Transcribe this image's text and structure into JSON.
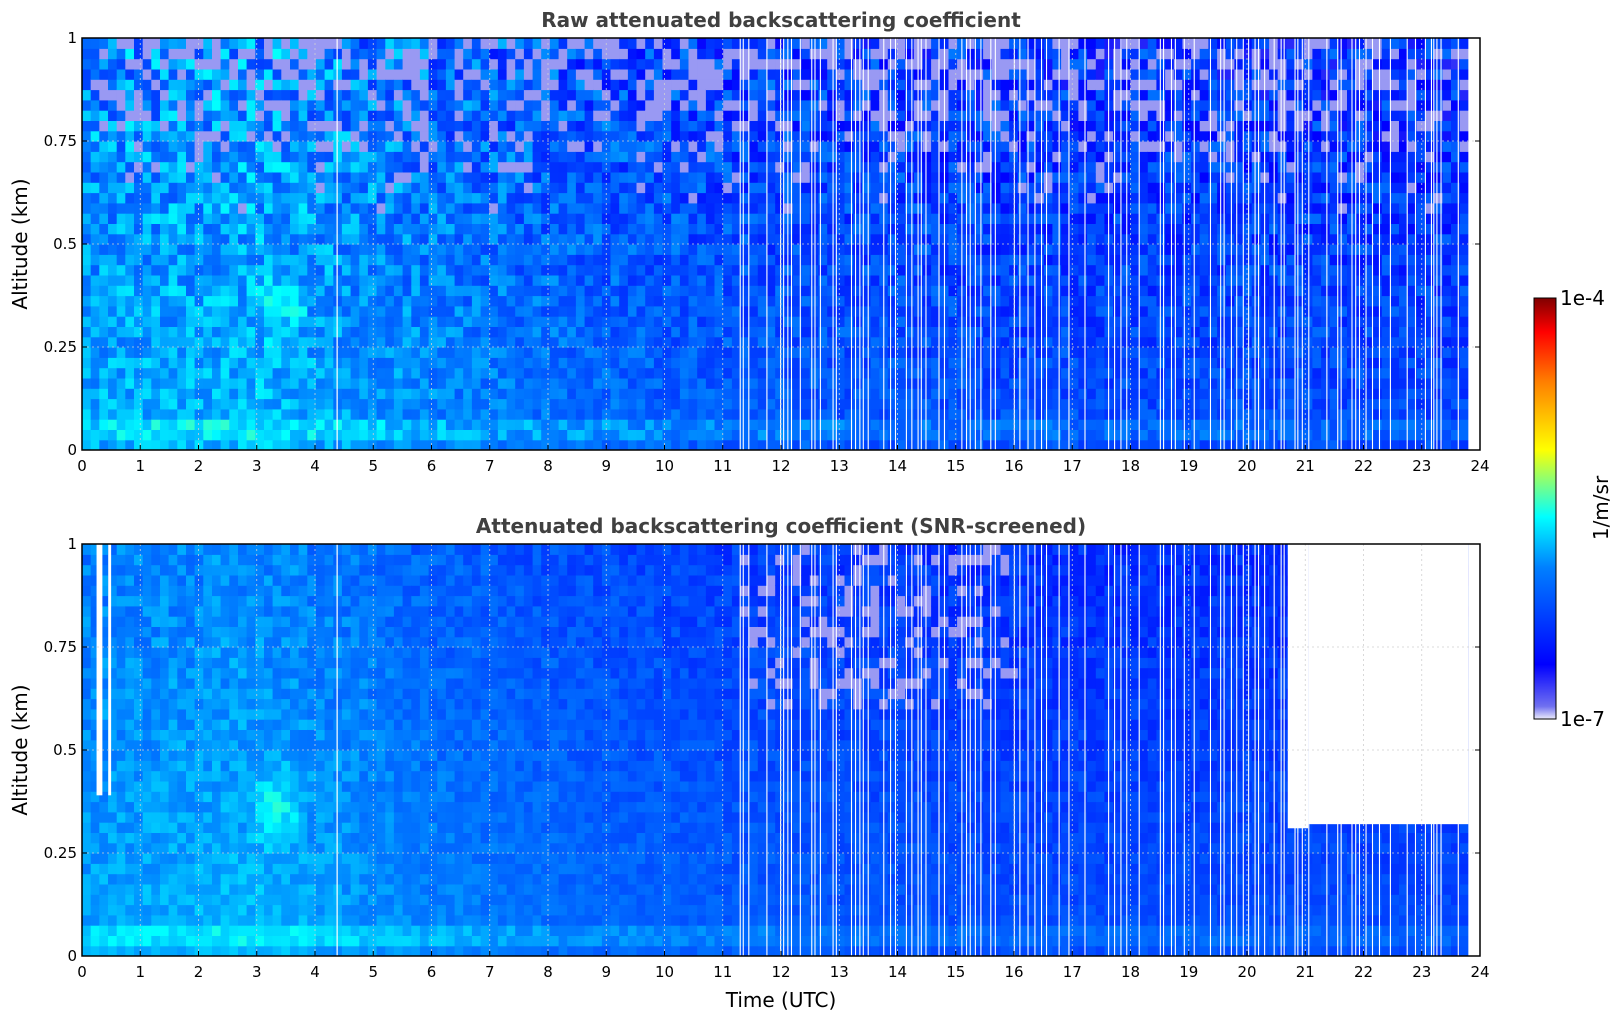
{
  "chart_data": [
    {
      "type": "heatmap",
      "title": "Raw attenuated backscattering coefficient",
      "xlabel": "",
      "ylabel": "Altitude (km)",
      "xlim": [
        0,
        24
      ],
      "ylim": [
        0,
        1
      ],
      "x_ticks": [
        "0",
        "1",
        "2",
        "3",
        "4",
        "5",
        "6",
        "7",
        "8",
        "9",
        "10",
        "11",
        "12",
        "13",
        "14",
        "15",
        "16",
        "17",
        "18",
        "19",
        "20",
        "21",
        "22",
        "23",
        "24"
      ],
      "y_ticks": [
        "0",
        "0.25",
        "0.5",
        "0.75",
        "1"
      ],
      "grid": true,
      "data_extent_time_end": 23.8,
      "mean_level_by_time": [
        {
          "t": 0,
          "level": 0.4
        },
        {
          "t": 3,
          "level": 0.42
        },
        {
          "t": 6,
          "level": 0.36
        },
        {
          "t": 9,
          "level": 0.32
        },
        {
          "t": 11,
          "level": 0.3
        },
        {
          "t": 13,
          "level": 0.29
        },
        {
          "t": 16,
          "level": 0.27
        },
        {
          "t": 20,
          "level": 0.27
        },
        {
          "t": 23.8,
          "level": 0.26
        }
      ],
      "features": [
        {
          "name": "enhanced layer near surface",
          "altitude_km": [
            0.03,
            0.06
          ]
        },
        {
          "name": "local maximum",
          "time_utc": 3.3,
          "altitude_km": 0.35
        },
        {
          "name": "frequent missing profiles",
          "time_utc": [
            11.3,
            23.8
          ]
        }
      ]
    },
    {
      "type": "heatmap",
      "title": "Attenuated backscattering coefficient (SNR-screened)",
      "xlabel": "Time (UTC)",
      "ylabel": "Altitude (km)",
      "xlim": [
        0,
        24
      ],
      "ylim": [
        0,
        1
      ],
      "x_ticks": [
        "0",
        "1",
        "2",
        "3",
        "4",
        "5",
        "6",
        "7",
        "8",
        "9",
        "10",
        "11",
        "12",
        "13",
        "14",
        "15",
        "16",
        "17",
        "18",
        "19",
        "20",
        "21",
        "22",
        "23",
        "24"
      ],
      "y_ticks": [
        "0",
        "0.25",
        "0.5",
        "0.75",
        "1"
      ],
      "grid": true,
      "data_extent_time_end": 23.8,
      "screened_top_altitude_km": [
        {
          "t_start": 0.25,
          "t_end": 0.35,
          "alt_km": 0.39
        },
        {
          "t_start": 0.45,
          "t_end": 0.5,
          "alt_km": 0.39
        },
        {
          "t_start": 20.7,
          "t_end": 21.05,
          "alt_km": 0.31
        },
        {
          "t_start": 21.05,
          "t_end": 23.8,
          "alt_km": 0.32
        }
      ]
    }
  ],
  "colorbar": {
    "label": "1/m/sr",
    "min_label": "1e-7",
    "max_label": "1e-4",
    "scale": "log",
    "colormap": "jet",
    "colors": [
      "#ebebfa",
      "#0000ff",
      "#00ffff",
      "#ffff00",
      "#ff0000",
      "#800000"
    ]
  }
}
